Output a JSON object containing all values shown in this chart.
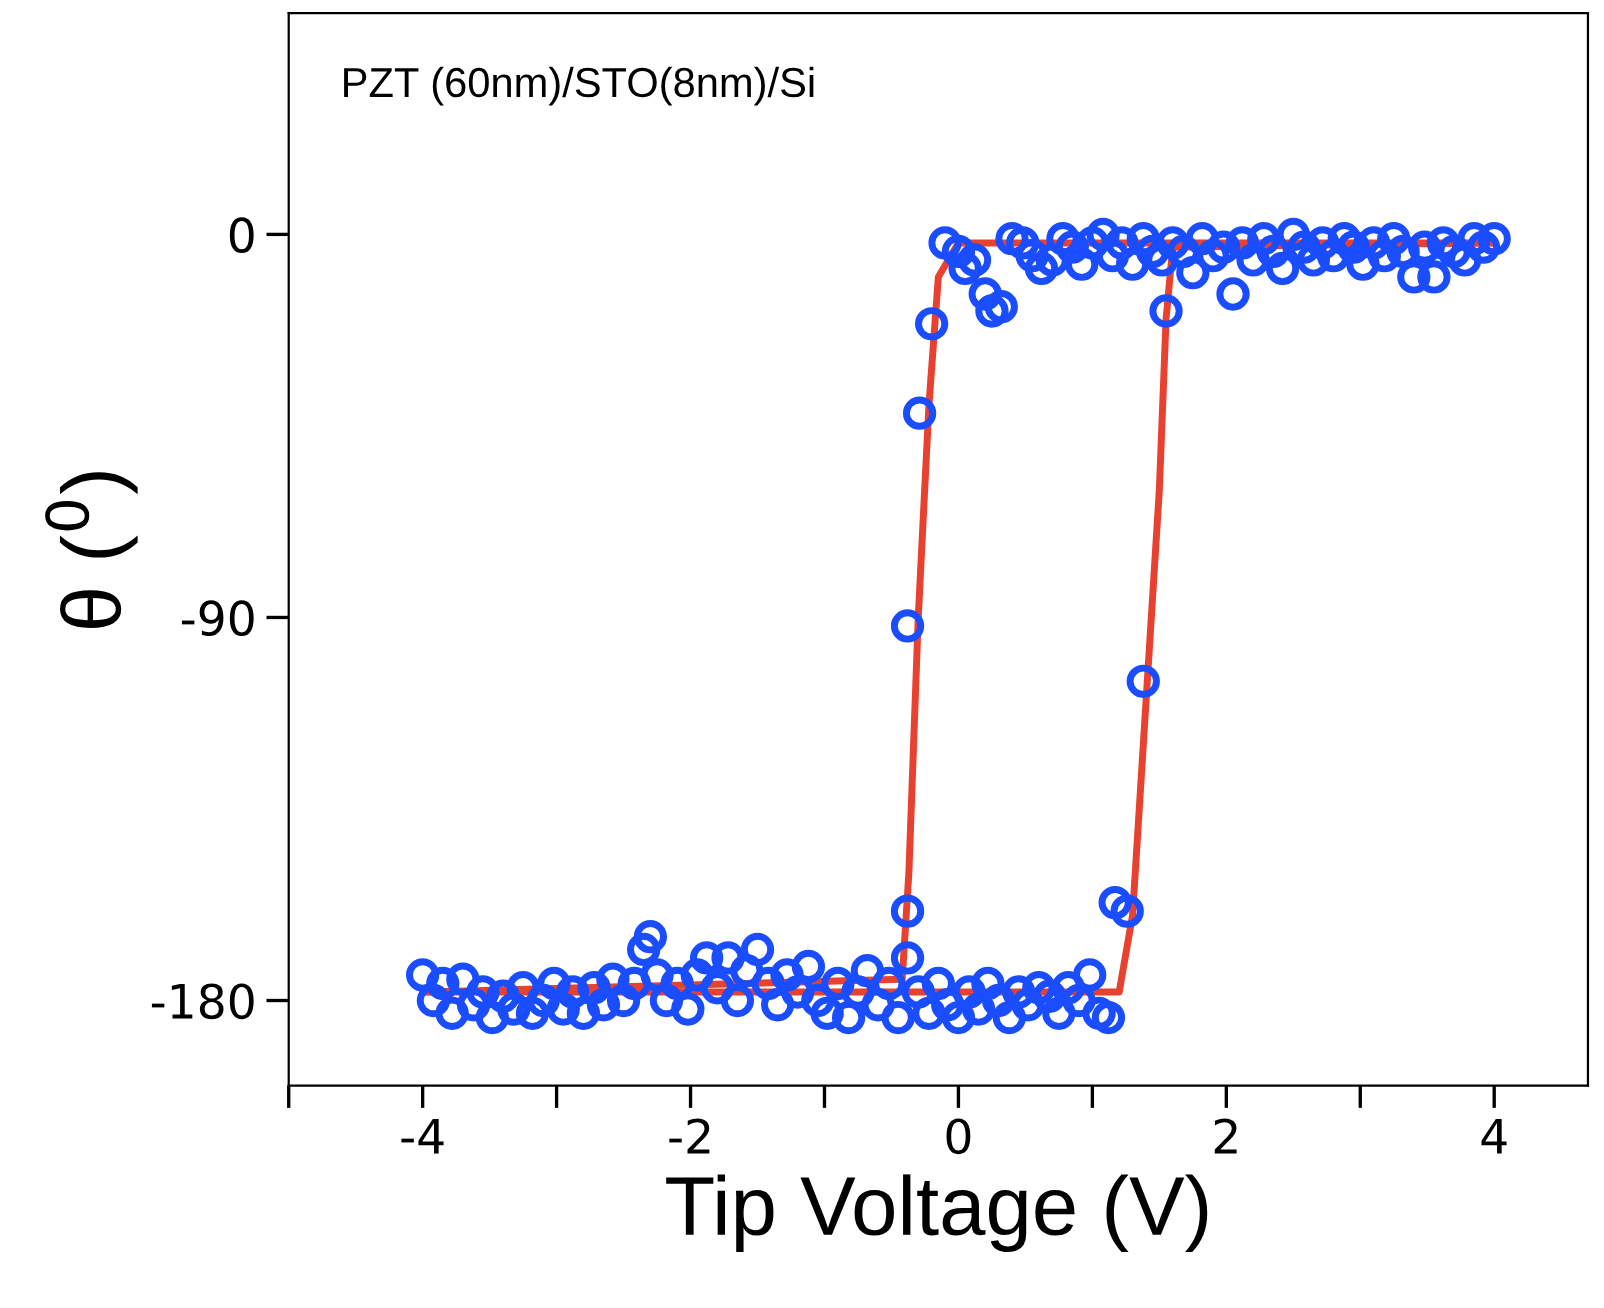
{
  "chart_data": {
    "type": "scatter",
    "xlabel": "Tip Voltage (V)",
    "ylabel": "θ ($^{0}$)",
    "annotations": [
      "PZT (60nm)/STO(8nm)/Si"
    ],
    "xlim": [
      -5,
      4.7
    ],
    "ylim": [
      -200,
      52
    ],
    "xticks": [
      {
        "value": -5,
        "label": null
      },
      -4,
      {
        "value": -3,
        "label": null
      },
      -2,
      {
        "value": -1,
        "label": null
      },
      0,
      {
        "value": 1,
        "label": null
      },
      2,
      {
        "value": 3,
        "label": null
      },
      4
    ],
    "yticks": [
      -180,
      -90,
      0
    ],
    "grid": false,
    "legend": false,
    "series": [
      {
        "type": "line",
        "color": "#e8412f",
        "line_style": "solid",
        "marker": "none",
        "x": [
          4.0,
          0.0,
          -0.15,
          -0.22,
          -0.3,
          -0.37,
          -0.42,
          -4.0
        ],
        "values": [
          -2,
          -2,
          -10,
          -40,
          -90,
          -150,
          -175,
          -178
        ]
      },
      {
        "type": "line",
        "color": "#e8412f",
        "line_style": "solid",
        "marker": "none",
        "x": [
          -4.0,
          1.2,
          1.3,
          1.4,
          1.5,
          1.55,
          1.6,
          4.0
        ],
        "values": [
          -178,
          -178,
          -160,
          -110,
          -60,
          -20,
          -3,
          -2
        ]
      },
      {
        "color": "#1a4dff",
        "marker": "circle",
        "x": [
          -4.0,
          -3.92,
          -3.85,
          -3.78,
          -3.7,
          -3.62,
          -3.55,
          -3.48,
          -3.4,
          -3.32,
          -3.25,
          -3.18,
          -3.1,
          -3.02,
          -2.95,
          -2.88,
          -2.8,
          -2.72,
          -2.65,
          -2.58,
          -2.5,
          -2.42,
          -2.35,
          -2.3,
          -2.25,
          -2.18,
          -2.1,
          -2.02,
          -1.95,
          -1.88,
          -1.8,
          -1.72,
          -1.65,
          -1.58,
          -1.5,
          -1.42,
          -1.35,
          -1.28,
          -1.2,
          -1.12,
          -1.05,
          -0.98,
          -0.9,
          -0.82,
          -0.75,
          -0.68,
          -0.6,
          -0.52,
          -0.45,
          -0.38,
          -0.3,
          -0.22,
          -0.15,
          -0.08,
          0.0,
          0.08,
          0.15,
          0.22,
          0.3,
          0.38,
          0.45,
          0.52,
          0.6,
          0.68,
          0.75,
          0.82,
          0.9,
          0.98,
          1.05,
          1.12,
          -0.1,
          0.0,
          0.05,
          0.12,
          0.2,
          0.25,
          0.32,
          0.4,
          0.48,
          0.55,
          0.62,
          0.7,
          0.78,
          0.85,
          0.92,
          1.0,
          1.08,
          1.15,
          1.22,
          1.3,
          1.38,
          1.45,
          1.52,
          1.6,
          1.68,
          1.75,
          1.82,
          1.9,
          1.98,
          2.05,
          2.12,
          2.2,
          2.28,
          2.35,
          2.42,
          2.5,
          2.58,
          2.65,
          2.72,
          2.8,
          2.88,
          2.95,
          3.02,
          3.1,
          3.18,
          3.25,
          3.32,
          3.4,
          3.48,
          3.55,
          3.62,
          3.7,
          3.78,
          3.85,
          3.92,
          4.0,
          -0.2,
          -0.29,
          -0.38,
          -0.38,
          1.55,
          1.38,
          1.17,
          1.26
        ],
        "values": [
          -174,
          -180,
          -176,
          -183,
          -175,
          -181,
          -178,
          -184,
          -179,
          -182,
          -177,
          -183,
          -180,
          -176,
          -182,
          -178,
          -183,
          -177,
          -181,
          -175,
          -180,
          -176,
          -168,
          -165,
          -174,
          -180,
          -176,
          -182,
          -174,
          -170,
          -177,
          -170,
          -180,
          -173,
          -168,
          -176,
          -181,
          -174,
          -178,
          -172,
          -180,
          -183,
          -176,
          -184,
          -178,
          -173,
          -181,
          -176,
          -184,
          -170,
          -178,
          -183,
          -176,
          -181,
          -184,
          -178,
          -182,
          -176,
          -180,
          -184,
          -178,
          -181,
          -177,
          -179,
          -183,
          -177,
          -180,
          -174,
          -183,
          -184,
          -2,
          -4,
          -8,
          -6,
          -14,
          -18,
          -17,
          -1,
          -2,
          -5,
          -8,
          -6,
          -1,
          -3,
          -7,
          -2,
          0,
          -5,
          -2,
          -7,
          -1,
          -4,
          -6,
          -2,
          -4,
          -9,
          -1,
          -5,
          -3,
          -14,
          -2,
          -6,
          -1,
          -4,
          -8,
          0,
          -3,
          -6,
          -2,
          -5,
          -1,
          -3,
          -7,
          -2,
          -5,
          -1,
          -4,
          -10,
          -3,
          -10,
          -2,
          -4,
          -6,
          -1,
          -3,
          -1,
          -21,
          -42,
          -92,
          -159,
          -18,
          -105,
          -157,
          -159
        ]
      }
    ]
  }
}
